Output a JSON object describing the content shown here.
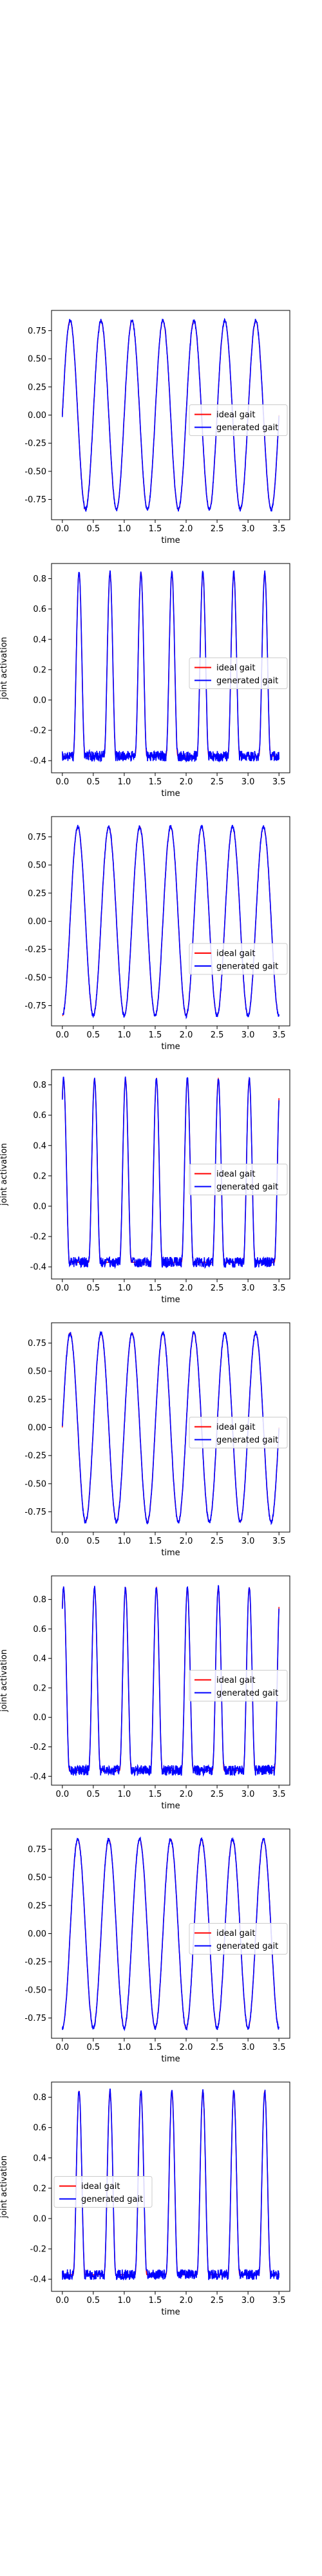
{
  "style": {
    "ideal_color": "#ff0000",
    "generated_color": "#0000ff",
    "axis_color": "#000000"
  },
  "chart_data": [
    {
      "type": "line",
      "kind": "sine",
      "title": "",
      "xlabel": "time",
      "ylabel": "",
      "xlim": [
        -0.175,
        3.675
      ],
      "ylim": [
        -0.93,
        0.93
      ],
      "xticks": [
        "0.0",
        "0.5",
        "1.0",
        "1.5",
        "2.0",
        "2.5",
        "3.0",
        "3.5"
      ],
      "yticks": [
        "0.75",
        "0.50",
        "0.25",
        "0.00",
        "-0.25",
        "-0.50",
        "-0.75"
      ],
      "legend_position": "center-right",
      "legend_entries": [
        "ideal gait",
        "generated gait"
      ],
      "period": 0.5,
      "amplitude": 0.84,
      "phase_deg": 0,
      "series": [
        {
          "name": "ideal gait",
          "color": "#ff0000"
        },
        {
          "name": "generated gait",
          "color": "#0000ff"
        }
      ]
    },
    {
      "type": "line",
      "kind": "pulse",
      "title": "",
      "xlabel": "time",
      "ylabel": "joint activation",
      "xlim": [
        -0.175,
        3.675
      ],
      "ylim": [
        -0.48,
        0.9
      ],
      "xticks": [
        "0.0",
        "0.5",
        "1.0",
        "1.5",
        "2.0",
        "2.5",
        "3.0",
        "3.5"
      ],
      "yticks": [
        "0.8",
        "0.6",
        "0.4",
        "0.2",
        "0.0",
        "-0.2",
        "-0.4"
      ],
      "legend_position": "center-right",
      "legend_entries": [
        "ideal gait",
        "generated gait"
      ],
      "period": 0.5,
      "high": 0.84,
      "low": -0.37,
      "peak_offset": 0.27,
      "series": [
        {
          "name": "ideal gait",
          "color": "#ff0000"
        },
        {
          "name": "generated gait",
          "color": "#0000ff"
        }
      ]
    },
    {
      "type": "line",
      "kind": "sine",
      "title": "",
      "xlabel": "time",
      "ylabel": "",
      "xlim": [
        -0.175,
        3.675
      ],
      "ylim": [
        -0.93,
        0.93
      ],
      "xticks": [
        "0.0",
        "0.5",
        "1.0",
        "1.5",
        "2.0",
        "2.5",
        "3.0",
        "3.5"
      ],
      "yticks": [
        "0.75",
        "0.50",
        "0.25",
        "0.00",
        "-0.25",
        "-0.50",
        "-0.75"
      ],
      "legend_position": "lower-right",
      "legend_entries": [
        "ideal gait",
        "generated gait"
      ],
      "period": 0.5,
      "amplitude": 0.84,
      "phase_deg": -90,
      "series": [
        {
          "name": "ideal gait",
          "color": "#ff0000"
        },
        {
          "name": "generated gait",
          "color": "#0000ff"
        }
      ]
    },
    {
      "type": "line",
      "kind": "pulse",
      "title": "",
      "xlabel": "time",
      "ylabel": "joint activation",
      "xlim": [
        -0.175,
        3.675
      ],
      "ylim": [
        -0.48,
        0.9
      ],
      "xticks": [
        "0.0",
        "0.5",
        "1.0",
        "1.5",
        "2.0",
        "2.5",
        "3.0",
        "3.5"
      ],
      "yticks": [
        "0.8",
        "0.6",
        "0.4",
        "0.2",
        "0.0",
        "-0.2",
        "-0.4"
      ],
      "legend_position": "center-right",
      "legend_entries": [
        "ideal gait",
        "generated gait"
      ],
      "period": 0.5,
      "high": 0.84,
      "low": -0.37,
      "peak_offset": 0.02,
      "series": [
        {
          "name": "ideal gait",
          "color": "#ff0000"
        },
        {
          "name": "generated gait",
          "color": "#0000ff"
        }
      ]
    },
    {
      "type": "line",
      "kind": "sine",
      "title": "",
      "xlabel": "time",
      "ylabel": "",
      "xlim": [
        -0.175,
        3.675
      ],
      "ylim": [
        -0.93,
        0.93
      ],
      "xticks": [
        "0.0",
        "0.5",
        "1.0",
        "1.5",
        "2.0",
        "2.5",
        "3.0",
        "3.5"
      ],
      "yticks": [
        "0.75",
        "0.50",
        "0.25",
        "0.00",
        "-0.25",
        "-0.50",
        "-0.75"
      ],
      "legend_position": "center-right",
      "legend_entries": [
        "ideal gait",
        "generated gait"
      ],
      "period": 0.5,
      "amplitude": 0.84,
      "phase_deg": 0,
      "series": [
        {
          "name": "ideal gait",
          "color": "#ff0000"
        },
        {
          "name": "generated gait",
          "color": "#0000ff"
        }
      ]
    },
    {
      "type": "line",
      "kind": "pulse",
      "title": "",
      "xlabel": "time",
      "ylabel": "joint activation",
      "xlim": [
        -0.175,
        3.675
      ],
      "ylim": [
        -0.46,
        0.96
      ],
      "xticks": [
        "0.0",
        "0.5",
        "1.0",
        "1.5",
        "2.0",
        "2.5",
        "3.0",
        "3.5"
      ],
      "yticks": [
        "0.8",
        "0.6",
        "0.4",
        "0.2",
        "0.0",
        "-0.2",
        "-0.4"
      ],
      "legend_position": "center-right",
      "legend_entries": [
        "ideal gait",
        "generated gait"
      ],
      "period": 0.5,
      "high": 0.88,
      "low": -0.36,
      "peak_offset": 0.02,
      "series": [
        {
          "name": "ideal gait",
          "color": "#ff0000"
        },
        {
          "name": "generated gait",
          "color": "#0000ff"
        }
      ]
    },
    {
      "type": "line",
      "kind": "sine",
      "title": "",
      "xlabel": "time",
      "ylabel": "",
      "xlim": [
        -0.175,
        3.675
      ],
      "ylim": [
        -0.93,
        0.93
      ],
      "xticks": [
        "0.0",
        "0.5",
        "1.0",
        "1.5",
        "2.0",
        "2.5",
        "3.0",
        "3.5"
      ],
      "yticks": [
        "0.75",
        "0.50",
        "0.25",
        "0.00",
        "-0.25",
        "-0.50",
        "-0.75"
      ],
      "legend_position": "center-right",
      "legend_entries": [
        "ideal gait",
        "generated gait"
      ],
      "period": 0.5,
      "amplitude": 0.84,
      "phase_deg": -90,
      "series": [
        {
          "name": "ideal gait",
          "color": "#ff0000"
        },
        {
          "name": "generated gait",
          "color": "#0000ff"
        }
      ]
    },
    {
      "type": "line",
      "kind": "pulse",
      "title": "",
      "xlabel": "time",
      "ylabel": "joint activation",
      "xlim": [
        -0.175,
        3.675
      ],
      "ylim": [
        -0.48,
        0.9
      ],
      "xticks": [
        "0.0",
        "0.5",
        "1.0",
        "1.5",
        "2.0",
        "2.5",
        "3.0",
        "3.5"
      ],
      "yticks": [
        "0.8",
        "0.6",
        "0.4",
        "0.2",
        "0.0",
        "-0.2",
        "-0.4"
      ],
      "legend_position": "center-left",
      "legend_entries": [
        "ideal gait",
        "generated gait"
      ],
      "period": 0.5,
      "high": 0.84,
      "low": -0.37,
      "peak_offset": 0.27,
      "series": [
        {
          "name": "ideal gait",
          "color": "#ff0000"
        },
        {
          "name": "generated gait",
          "color": "#0000ff"
        }
      ]
    }
  ]
}
